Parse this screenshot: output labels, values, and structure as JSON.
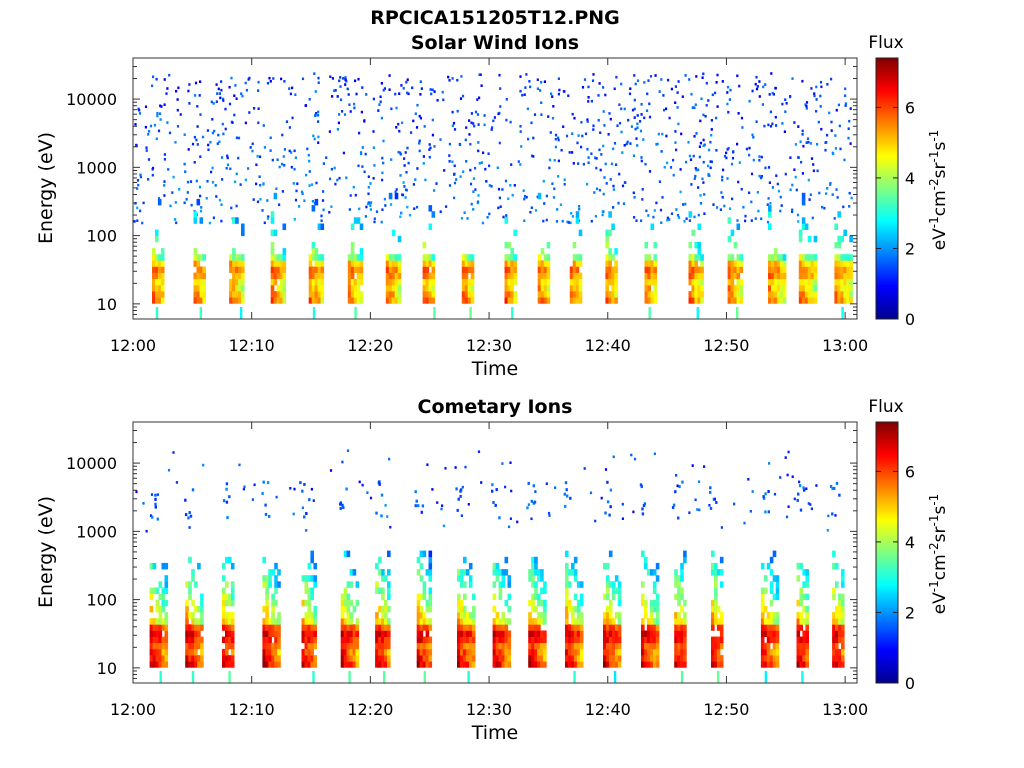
{
  "figure_title": "RPCICA151205T12.PNG",
  "chart_data": [
    {
      "type": "heatmap",
      "title": "Solar Wind Ions",
      "xlabel": "Time",
      "ylabel": "Energy (eV)",
      "x_ticks": [
        "12:00",
        "12:10",
        "12:20",
        "12:30",
        "12:40",
        "12:50",
        "13:00"
      ],
      "xlim_minutes": [
        0,
        61
      ],
      "y_scale": "log",
      "y_ticks": [
        "10",
        "100",
        "1000",
        "10000"
      ],
      "ylim": [
        6,
        40000
      ],
      "colorbar": {
        "title": "Flux",
        "label": "eV-1cm-2sr-1s-1",
        "ticks": [
          "0",
          "2",
          "4",
          "6"
        ],
        "range": [
          0,
          7.4
        ],
        "colormap": "jet"
      },
      "bursts_minutes": [
        2.1,
        5.6,
        8.6,
        12.1,
        15.3,
        18.6,
        21.8,
        24.9,
        28.2,
        31.8,
        34.6,
        37.3,
        40.3,
        43.6,
        47.3,
        50.6,
        54.0,
        56.6,
        59.6
      ],
      "core_energy_eV": [
        20,
        40
      ],
      "peak_log_flux": 6.0,
      "sparse_background": true
    },
    {
      "type": "heatmap",
      "title": "Cometary Ions",
      "xlabel": "Time",
      "ylabel": "Energy (eV)",
      "x_ticks": [
        "12:00",
        "12:10",
        "12:20",
        "12:30",
        "12:40",
        "12:50",
        "13:00"
      ],
      "xlim_minutes": [
        0,
        61
      ],
      "y_scale": "log",
      "y_ticks": [
        "10",
        "100",
        "1000",
        "10000"
      ],
      "ylim": [
        6,
        40000
      ],
      "colorbar": {
        "title": "Flux",
        "label": "eV-1cm-2sr-1s-1",
        "ticks": [
          "0",
          "2",
          "4",
          "6"
        ],
        "range": [
          0,
          7.4
        ],
        "colormap": "jet"
      },
      "bursts_minutes": [
        1.9,
        4.9,
        8.0,
        11.4,
        14.7,
        18.0,
        20.9,
        24.4,
        27.8,
        30.8,
        33.8,
        36.9,
        40.1,
        43.3,
        46.1,
        49.2,
        53.4,
        56.4,
        59.4
      ],
      "core_energy_eV": [
        18,
        45
      ],
      "peak_log_flux": 7.0,
      "sparse_background": false
    }
  ]
}
